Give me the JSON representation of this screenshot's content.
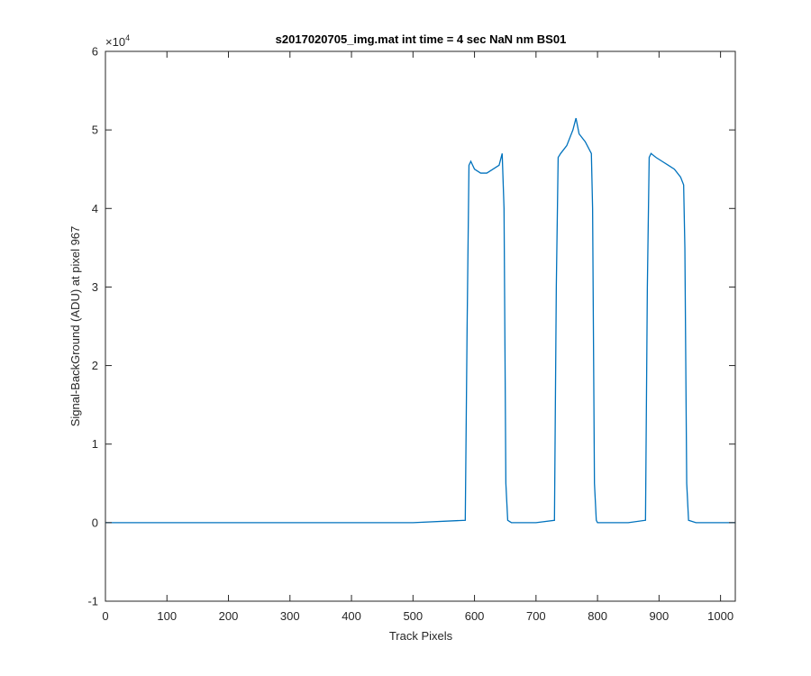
{
  "chart_data": {
    "type": "line",
    "title": "s2017020705_img.mat int time = 4 sec  NaN nm BS01",
    "xlabel": "Track Pixels",
    "ylabel": "Signal-BackGround (ADU) at pixel 967",
    "xlim": [
      0,
      1024
    ],
    "ylim": [
      -10000,
      60000
    ],
    "xticks": [
      0,
      100,
      200,
      300,
      400,
      500,
      600,
      700,
      800,
      900,
      1000
    ],
    "xtick_labels": [
      "0",
      "100",
      "200",
      "300",
      "400",
      "500",
      "600",
      "700",
      "800",
      "900",
      "1000"
    ],
    "yticks": [
      -10000,
      0,
      10000,
      20000,
      30000,
      40000,
      50000,
      60000
    ],
    "ytick_labels": [
      "-1",
      "0",
      "1",
      "2",
      "3",
      "4",
      "5",
      "6"
    ],
    "y_exponent_label": "×10",
    "y_exponent": "4",
    "grid": false,
    "line_color": "#0072BD",
    "series": [
      {
        "x": [
          0,
          100,
          200,
          300,
          400,
          500,
          585,
          588,
          591,
          594,
          600,
          610,
          620,
          630,
          640,
          645,
          648,
          651,
          654,
          660,
          700,
          730,
          733,
          736,
          740,
          750,
          760,
          765,
          770,
          780,
          790,
          792,
          795,
          798,
          800,
          850,
          878,
          881,
          884,
          887,
          895,
          905,
          915,
          925,
          935,
          940,
          942,
          945,
          948,
          960,
          1000,
          1024
        ],
        "y": [
          0,
          0,
          0,
          0,
          0,
          0,
          300,
          25000,
          45500,
          46000,
          45000,
          44500,
          44500,
          45000,
          45500,
          47000,
          40000,
          5000,
          300,
          0,
          0,
          300,
          30000,
          46500,
          47000,
          48000,
          50000,
          51500,
          49500,
          48500,
          47000,
          40000,
          5000,
          300,
          0,
          0,
          300,
          30000,
          46500,
          47000,
          46500,
          46000,
          45500,
          45000,
          44000,
          43000,
          35000,
          5000,
          300,
          0,
          0,
          0
        ]
      }
    ]
  }
}
